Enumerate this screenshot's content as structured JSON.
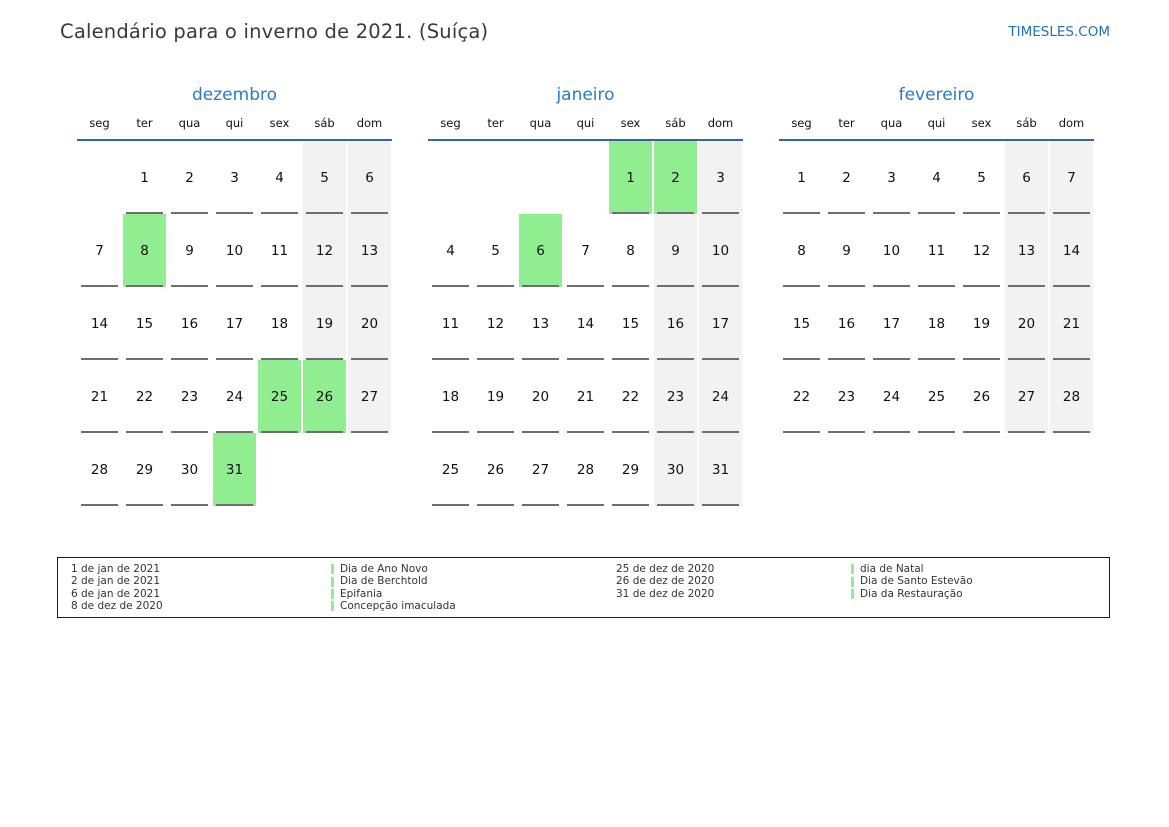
{
  "page": {
    "title": "Calendário para o inverno de 2021. (Suíça)",
    "site_link": "TIMESLES.COM"
  },
  "colors": {
    "accent_blue": "#2b7bc4",
    "link_blue": "#2272b8",
    "weekday_line_blue": "#336699",
    "holiday_green": "#90ee90",
    "weekend_gray": "#f2f2f2"
  },
  "weekdays": [
    "seg",
    "ter",
    "qua",
    "qui",
    "sex",
    "sáb",
    "dom"
  ],
  "months": [
    {
      "name": "dezembro",
      "weeks": [
        [
          null,
          {
            "d": 1
          },
          {
            "d": 2
          },
          {
            "d": 3
          },
          {
            "d": 4
          },
          {
            "d": 5,
            "w": 1
          },
          {
            "d": 6,
            "w": 1
          }
        ],
        [
          {
            "d": 7
          },
          {
            "d": 8,
            "h": 1
          },
          {
            "d": 9
          },
          {
            "d": 10
          },
          {
            "d": 11
          },
          {
            "d": 12,
            "w": 1
          },
          {
            "d": 13,
            "w": 1
          }
        ],
        [
          {
            "d": 14
          },
          {
            "d": 15
          },
          {
            "d": 16
          },
          {
            "d": 17
          },
          {
            "d": 18
          },
          {
            "d": 19,
            "w": 1
          },
          {
            "d": 20,
            "w": 1
          }
        ],
        [
          {
            "d": 21
          },
          {
            "d": 22
          },
          {
            "d": 23
          },
          {
            "d": 24
          },
          {
            "d": 25,
            "h": 1
          },
          {
            "d": 26,
            "h": 1
          },
          {
            "d": 27,
            "w": 1
          }
        ],
        [
          {
            "d": 28
          },
          {
            "d": 29
          },
          {
            "d": 30
          },
          {
            "d": 31,
            "h": 1
          },
          null,
          null,
          null
        ]
      ]
    },
    {
      "name": "janeiro",
      "weeks": [
        [
          null,
          null,
          null,
          null,
          {
            "d": 1,
            "h": 1
          },
          {
            "d": 2,
            "h": 1
          },
          {
            "d": 3,
            "w": 1
          }
        ],
        [
          {
            "d": 4
          },
          {
            "d": 5
          },
          {
            "d": 6,
            "h": 1
          },
          {
            "d": 7
          },
          {
            "d": 8
          },
          {
            "d": 9,
            "w": 1
          },
          {
            "d": 10,
            "w": 1
          }
        ],
        [
          {
            "d": 11
          },
          {
            "d": 12
          },
          {
            "d": 13
          },
          {
            "d": 14
          },
          {
            "d": 15
          },
          {
            "d": 16,
            "w": 1
          },
          {
            "d": 17,
            "w": 1
          }
        ],
        [
          {
            "d": 18
          },
          {
            "d": 19
          },
          {
            "d": 20
          },
          {
            "d": 21
          },
          {
            "d": 22
          },
          {
            "d": 23,
            "w": 1
          },
          {
            "d": 24,
            "w": 1
          }
        ],
        [
          {
            "d": 25
          },
          {
            "d": 26
          },
          {
            "d": 27
          },
          {
            "d": 28
          },
          {
            "d": 29
          },
          {
            "d": 30,
            "w": 1
          },
          {
            "d": 31,
            "w": 1
          }
        ]
      ]
    },
    {
      "name": "fevereiro",
      "weeks": [
        [
          {
            "d": 1
          },
          {
            "d": 2
          },
          {
            "d": 3
          },
          {
            "d": 4
          },
          {
            "d": 5
          },
          {
            "d": 6,
            "w": 1
          },
          {
            "d": 7,
            "w": 1
          }
        ],
        [
          {
            "d": 8
          },
          {
            "d": 9
          },
          {
            "d": 10
          },
          {
            "d": 11
          },
          {
            "d": 12
          },
          {
            "d": 13,
            "w": 1
          },
          {
            "d": 14,
            "w": 1
          }
        ],
        [
          {
            "d": 15
          },
          {
            "d": 16
          },
          {
            "d": 17
          },
          {
            "d": 18
          },
          {
            "d": 19
          },
          {
            "d": 20,
            "w": 1
          },
          {
            "d": 21,
            "w": 1
          }
        ],
        [
          {
            "d": 22
          },
          {
            "d": 23
          },
          {
            "d": 24
          },
          {
            "d": 25
          },
          {
            "d": 26
          },
          {
            "d": 27,
            "w": 1
          },
          {
            "d": 28,
            "w": 1
          }
        ]
      ]
    }
  ],
  "legend": {
    "column1": [
      {
        "date": "1 de jan de 2021",
        "name": "Dia de Ano Novo"
      },
      {
        "date": "2 de jan de 2021",
        "name": "Dia de Berchtold"
      },
      {
        "date": "6 de jan de 2021",
        "name": "Epifania"
      },
      {
        "date": "8 de dez de 2020",
        "name": "Concepção imaculada"
      }
    ],
    "column2": [
      {
        "date": "25 de dez de 2020",
        "name": "dia de Natal"
      },
      {
        "date": "26 de dez de 2020",
        "name": "Dia de Santo Estevão"
      },
      {
        "date": "31 de dez de 2020",
        "name": "Dia da Restauração"
      }
    ]
  }
}
